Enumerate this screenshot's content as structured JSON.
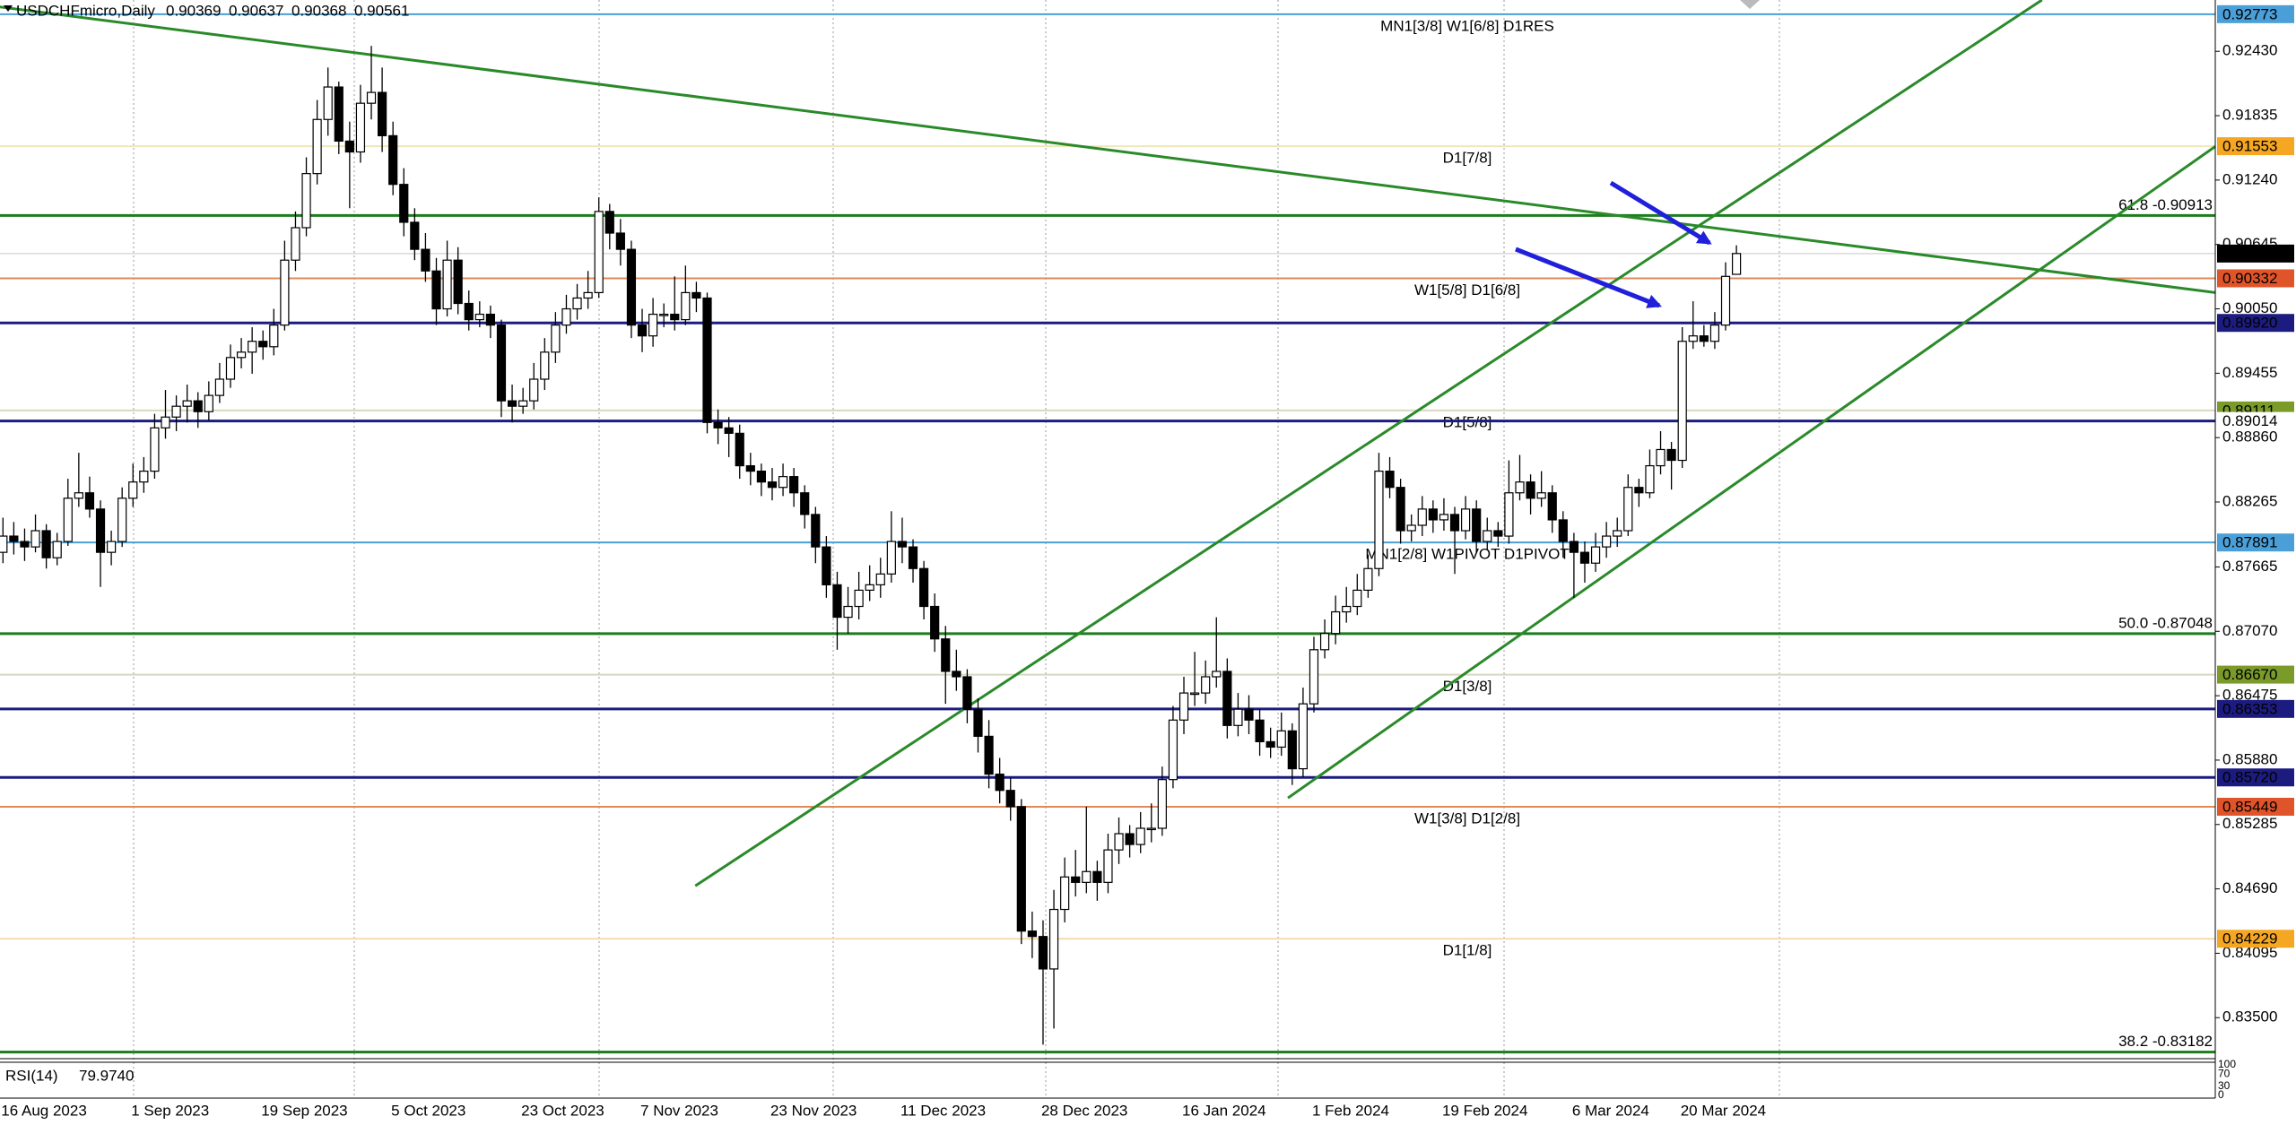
{
  "chart_data": {
    "type": "candlestick",
    "symbol": "USDCHFmicro,Daily",
    "ylim": [
      0.83121,
      0.92904
    ],
    "yticks": [
      {
        "value": 0.9243,
        "label": "0.92430"
      },
      0.91835,
      {
        "value": 0.9124,
        "label": "0.91240"
      },
      0.90645,
      {
        "value": 0.9005,
        "label": "0.90050"
      },
      0.89455,
      {
        "value": 0.8886,
        "label": "0.88860"
      },
      0.88265,
      0.87665,
      {
        "value": 0.8707,
        "label": "0.87070"
      },
      0.86475,
      {
        "value": 0.8588,
        "label": "0.85880"
      },
      0.85285,
      {
        "value": 0.8469,
        "label": "0.84690"
      },
      0.84095,
      {
        "value": 0.835,
        "label": "0.83500"
      }
    ],
    "categories": [
      "16 Aug 2023",
      null,
      null,
      null,
      null,
      null,
      null,
      null,
      null,
      null,
      null,
      null,
      "1 Sep 2023",
      null,
      null,
      null,
      null,
      null,
      null,
      null,
      null,
      null,
      null,
      null,
      "19 Sep 2023",
      null,
      null,
      null,
      null,
      null,
      null,
      null,
      null,
      null,
      null,
      null,
      "5 Oct 2023",
      null,
      null,
      null,
      null,
      null,
      null,
      null,
      null,
      null,
      null,
      null,
      "23 Oct 2023",
      null,
      null,
      null,
      null,
      null,
      null,
      null,
      null,
      null,
      null,
      "7 Nov 2023",
      null,
      null,
      null,
      null,
      null,
      null,
      null,
      null,
      null,
      null,
      null,
      "23 Nov 2023",
      null,
      null,
      null,
      null,
      null,
      null,
      null,
      null,
      null,
      null,
      null,
      "11 Dec 2023",
      null,
      null,
      null,
      null,
      null,
      null,
      null,
      null,
      null,
      null,
      null,
      null,
      "28 Dec 2023",
      null,
      null,
      null,
      null,
      null,
      null,
      null,
      null,
      null,
      null,
      null,
      null,
      "16 Jan 2024",
      null,
      null,
      null,
      null,
      null,
      null,
      null,
      null,
      null,
      null,
      null,
      "1 Feb 2024",
      null,
      null,
      null,
      null,
      null,
      null,
      null,
      null,
      null,
      null,
      null,
      "19 Feb 2024",
      null,
      null,
      null,
      null,
      null,
      null,
      null,
      null,
      null,
      null,
      null,
      "6 Mar 2024",
      null,
      null,
      null,
      null,
      null,
      null,
      null,
      null,
      null,
      "20 Mar 2024",
      null,
      null,
      null,
      null,
      null
    ],
    "ohlc": [
      [
        0.878,
        0.8812,
        0.877,
        0.8795
      ],
      [
        0.8795,
        0.8808,
        0.8778,
        0.879
      ],
      [
        0.879,
        0.8802,
        0.8772,
        0.8785
      ],
      [
        0.8785,
        0.8815,
        0.878,
        0.88
      ],
      [
        0.88,
        0.8806,
        0.8765,
        0.8775
      ],
      [
        0.8775,
        0.8798,
        0.8768,
        0.879
      ],
      [
        0.879,
        0.8848,
        0.8786,
        0.883
      ],
      [
        0.883,
        0.8872,
        0.8822,
        0.8835
      ],
      [
        0.8835,
        0.885,
        0.8812,
        0.882
      ],
      [
        0.882,
        0.8828,
        0.8748,
        0.878
      ],
      [
        0.878,
        0.88,
        0.8768,
        0.879
      ],
      [
        0.879,
        0.884,
        0.8785,
        0.883
      ],
      [
        0.883,
        0.8862,
        0.8822,
        0.8845
      ],
      [
        0.8845,
        0.8868,
        0.8835,
        0.8855
      ],
      [
        0.8855,
        0.8908,
        0.8848,
        0.8895
      ],
      [
        0.8895,
        0.893,
        0.8885,
        0.8905
      ],
      [
        0.8905,
        0.8925,
        0.8892,
        0.8915
      ],
      [
        0.8915,
        0.8935,
        0.89,
        0.892
      ],
      [
        0.892,
        0.8928,
        0.8895,
        0.891
      ],
      [
        0.891,
        0.8938,
        0.8902,
        0.8925
      ],
      [
        0.8925,
        0.8955,
        0.8918,
        0.894
      ],
      [
        0.894,
        0.8972,
        0.8932,
        0.896
      ],
      [
        0.896,
        0.8978,
        0.895,
        0.8965
      ],
      [
        0.8965,
        0.8988,
        0.8945,
        0.8975
      ],
      [
        0.8975,
        0.8985,
        0.8958,
        0.897
      ],
      [
        0.897,
        0.9005,
        0.8962,
        0.899
      ],
      [
        0.899,
        0.9068,
        0.8985,
        0.905
      ],
      [
        0.905,
        0.9095,
        0.904,
        0.908
      ],
      [
        0.908,
        0.9145,
        0.9072,
        0.913
      ],
      [
        0.913,
        0.9198,
        0.912,
        0.918
      ],
      [
        0.918,
        0.9228,
        0.9165,
        0.921
      ],
      [
        0.921,
        0.9215,
        0.9148,
        0.916
      ],
      [
        0.916,
        0.9178,
        0.9098,
        0.915
      ],
      [
        0.915,
        0.9212,
        0.914,
        0.9195
      ],
      [
        0.9195,
        0.9248,
        0.918,
        0.9205
      ],
      [
        0.9205,
        0.9228,
        0.915,
        0.9165
      ],
      [
        0.9165,
        0.9178,
        0.911,
        0.912
      ],
      [
        0.912,
        0.9135,
        0.9072,
        0.9085
      ],
      [
        0.9085,
        0.9098,
        0.905,
        0.906
      ],
      [
        0.906,
        0.9075,
        0.903,
        0.904
      ],
      [
        0.904,
        0.9052,
        0.899,
        0.9005
      ],
      [
        0.9005,
        0.9068,
        0.8998,
        0.905
      ],
      [
        0.905,
        0.9062,
        0.9,
        0.901
      ],
      [
        0.901,
        0.9022,
        0.8985,
        0.8995
      ],
      [
        0.8995,
        0.9012,
        0.8988,
        0.9
      ],
      [
        0.9,
        0.9008,
        0.8978,
        0.899
      ],
      [
        0.899,
        0.8995,
        0.8905,
        0.892
      ],
      [
        0.892,
        0.8935,
        0.89,
        0.8915
      ],
      [
        0.8915,
        0.8932,
        0.8908,
        0.892
      ],
      [
        0.892,
        0.8955,
        0.8912,
        0.894
      ],
      [
        0.894,
        0.8978,
        0.893,
        0.8965
      ],
      [
        0.8965,
        0.9002,
        0.8955,
        0.899
      ],
      [
        0.899,
        0.9018,
        0.8982,
        0.9005
      ],
      [
        0.9005,
        0.9028,
        0.8995,
        0.9015
      ],
      [
        0.9015,
        0.904,
        0.9005,
        0.902
      ],
      [
        0.902,
        0.9108,
        0.9015,
        0.9095
      ],
      [
        0.9095,
        0.9102,
        0.906,
        0.9075
      ],
      [
        0.9075,
        0.9088,
        0.9045,
        0.906
      ],
      [
        0.906,
        0.9068,
        0.8978,
        0.899
      ],
      [
        0.899,
        0.9005,
        0.8965,
        0.898
      ],
      [
        0.898,
        0.9015,
        0.897,
        0.9
      ],
      [
        0.9,
        0.901,
        0.8988,
        0.9
      ],
      [
        0.9,
        0.9035,
        0.8985,
        0.8995
      ],
      [
        0.8995,
        0.9045,
        0.899,
        0.902
      ],
      [
        0.902,
        0.903,
        0.9002,
        0.9015
      ],
      [
        0.9015,
        0.902,
        0.889,
        0.89
      ],
      [
        0.89,
        0.8912,
        0.888,
        0.8895
      ],
      [
        0.8895,
        0.8905,
        0.8868,
        0.889
      ],
      [
        0.889,
        0.8898,
        0.8848,
        0.886
      ],
      [
        0.886,
        0.8872,
        0.8842,
        0.8855
      ],
      [
        0.8855,
        0.8862,
        0.8832,
        0.8845
      ],
      [
        0.8845,
        0.8858,
        0.8828,
        0.884
      ],
      [
        0.884,
        0.8862,
        0.8832,
        0.885
      ],
      [
        0.885,
        0.8858,
        0.8822,
        0.8835
      ],
      [
        0.8835,
        0.8842,
        0.8802,
        0.8815
      ],
      [
        0.8815,
        0.8822,
        0.877,
        0.8785
      ],
      [
        0.8785,
        0.8795,
        0.8738,
        0.875
      ],
      [
        0.875,
        0.8762,
        0.869,
        0.872
      ],
      [
        0.872,
        0.8748,
        0.8705,
        0.873
      ],
      [
        0.873,
        0.8762,
        0.8718,
        0.8745
      ],
      [
        0.8745,
        0.8768,
        0.8735,
        0.875
      ],
      [
        0.875,
        0.8775,
        0.8738,
        0.876
      ],
      [
        0.876,
        0.8818,
        0.8752,
        0.879
      ],
      [
        0.879,
        0.8812,
        0.877,
        0.8785
      ],
      [
        0.8785,
        0.8792,
        0.8752,
        0.8765
      ],
      [
        0.8765,
        0.8772,
        0.8718,
        0.873
      ],
      [
        0.873,
        0.8742,
        0.8688,
        0.87
      ],
      [
        0.87,
        0.8712,
        0.864,
        0.867
      ],
      [
        0.867,
        0.869,
        0.8652,
        0.8665
      ],
      [
        0.8665,
        0.8672,
        0.8622,
        0.8635
      ],
      [
        0.8635,
        0.8645,
        0.8595,
        0.861
      ],
      [
        0.861,
        0.8625,
        0.8562,
        0.8575
      ],
      [
        0.8575,
        0.859,
        0.8548,
        0.856
      ],
      [
        0.856,
        0.8572,
        0.8532,
        0.8545
      ],
      [
        0.8545,
        0.8552,
        0.8418,
        0.843
      ],
      [
        0.843,
        0.8448,
        0.8405,
        0.8425
      ],
      [
        0.8425,
        0.844,
        0.8325,
        0.8395
      ],
      [
        0.8395,
        0.8468,
        0.834,
        0.845
      ],
      [
        0.845,
        0.8498,
        0.8438,
        0.848
      ],
      [
        0.848,
        0.8505,
        0.8462,
        0.8475
      ],
      [
        0.8475,
        0.8545,
        0.8465,
        0.8485
      ],
      [
        0.8485,
        0.8495,
        0.8458,
        0.8475
      ],
      [
        0.8475,
        0.852,
        0.8465,
        0.8505
      ],
      [
        0.8505,
        0.8535,
        0.8492,
        0.852
      ],
      [
        0.852,
        0.8528,
        0.8498,
        0.851
      ],
      [
        0.851,
        0.854,
        0.8502,
        0.8525
      ],
      [
        0.8525,
        0.8548,
        0.8512,
        0.8525
      ],
      [
        0.8525,
        0.8582,
        0.8518,
        0.857
      ],
      [
        0.857,
        0.8638,
        0.8562,
        0.8625
      ],
      [
        0.8625,
        0.8665,
        0.8612,
        0.865
      ],
      [
        0.865,
        0.8688,
        0.8638,
        0.865
      ],
      [
        0.865,
        0.868,
        0.864,
        0.8665
      ],
      [
        0.8665,
        0.872,
        0.8655,
        0.867
      ],
      [
        0.867,
        0.8682,
        0.8608,
        0.862
      ],
      [
        0.862,
        0.865,
        0.861,
        0.8635
      ],
      [
        0.8635,
        0.8648,
        0.8612,
        0.8625
      ],
      [
        0.8625,
        0.8635,
        0.8592,
        0.8605
      ],
      [
        0.8605,
        0.8618,
        0.859,
        0.86
      ],
      [
        0.86,
        0.8632,
        0.8592,
        0.8615
      ],
      [
        0.8615,
        0.8622,
        0.8565,
        0.858
      ],
      [
        0.858,
        0.8655,
        0.8572,
        0.864
      ],
      [
        0.864,
        0.8702,
        0.8632,
        0.869
      ],
      [
        0.869,
        0.8718,
        0.8682,
        0.8705
      ],
      [
        0.8705,
        0.874,
        0.8695,
        0.8725
      ],
      [
        0.8725,
        0.8748,
        0.8715,
        0.873
      ],
      [
        0.873,
        0.876,
        0.8722,
        0.8745
      ],
      [
        0.8745,
        0.8778,
        0.8738,
        0.8765
      ],
      [
        0.8765,
        0.8872,
        0.8758,
        0.8855
      ],
      [
        0.8855,
        0.8868,
        0.883,
        0.884
      ],
      [
        0.884,
        0.8848,
        0.8788,
        0.88
      ],
      [
        0.88,
        0.8815,
        0.879,
        0.8805
      ],
      [
        0.8805,
        0.8832,
        0.8795,
        0.882
      ],
      [
        0.882,
        0.8828,
        0.8798,
        0.881
      ],
      [
        0.881,
        0.883,
        0.88,
        0.8815
      ],
      [
        0.8815,
        0.8822,
        0.876,
        0.88
      ],
      [
        0.88,
        0.8832,
        0.8792,
        0.882
      ],
      [
        0.882,
        0.8828,
        0.878,
        0.879
      ],
      [
        0.879,
        0.8812,
        0.8782,
        0.88
      ],
      [
        0.88,
        0.8808,
        0.8785,
        0.8795
      ],
      [
        0.8795,
        0.8865,
        0.8788,
        0.8835
      ],
      [
        0.8835,
        0.887,
        0.8828,
        0.8845
      ],
      [
        0.8845,
        0.8852,
        0.8815,
        0.883
      ],
      [
        0.883,
        0.8855,
        0.8822,
        0.8835
      ],
      [
        0.8835,
        0.8842,
        0.8798,
        0.881
      ],
      [
        0.881,
        0.8818,
        0.8775,
        0.879
      ],
      [
        0.879,
        0.8798,
        0.8738,
        0.878
      ],
      [
        0.878,
        0.879,
        0.8752,
        0.877
      ],
      [
        0.877,
        0.8798,
        0.8762,
        0.8785
      ],
      [
        0.8785,
        0.8808,
        0.8775,
        0.8795
      ],
      [
        0.8795,
        0.8812,
        0.8785,
        0.88
      ],
      [
        0.88,
        0.8852,
        0.8795,
        0.884
      ],
      [
        0.884,
        0.8848,
        0.8822,
        0.8835
      ],
      [
        0.8835,
        0.8875,
        0.883,
        0.886
      ],
      [
        0.886,
        0.8892,
        0.8852,
        0.8875
      ],
      [
        0.8875,
        0.8882,
        0.8838,
        0.8865
      ],
      [
        0.8865,
        0.8988,
        0.8858,
        0.8975
      ],
      [
        0.8975,
        0.9012,
        0.8968,
        0.898
      ],
      [
        0.898,
        0.899,
        0.897,
        0.8975
      ],
      [
        0.8975,
        0.9002,
        0.8968,
        0.899
      ],
      [
        0.899,
        0.9048,
        0.8985,
        0.9035
      ],
      [
        0.90369,
        0.90637,
        0.90368,
        0.90561
      ]
    ],
    "up_color": "#ffffff",
    "down_color": "#000000",
    "current_price_color": "#000000",
    "levels": [
      {
        "price": 0.92773,
        "color": "#4a9fd8",
        "heavy": false,
        "text": "MN1[3/8] W1[6/8] D1RES",
        "text_color": "#4a9fd8",
        "tag_color": "#4a9fd8"
      },
      {
        "price": 0.91553,
        "color": "#efe7b6",
        "heavy": false,
        "text": "D1[7/8]",
        "text_color": "#e8a317",
        "tag_color": "#f5a623"
      },
      {
        "price": 0.90332,
        "color": "#e08a5a",
        "heavy": false,
        "text": "W1[5/8] D1[6/8]",
        "text_color": "#e0542a",
        "tag_color": "#e0542a"
      },
      {
        "price": 0.8992,
        "label": "0.89920",
        "color": "#1c1c80",
        "heavy": true,
        "tag_color": "#1c1c80"
      },
      {
        "price": 0.89111,
        "color": "#d8d8c0",
        "heavy": false,
        "text": "D1[5/8]",
        "text_color": "#7a9a2a",
        "tag_color": "#7a9a2a"
      },
      {
        "price": 0.89014,
        "color": "#1c1c80",
        "heavy": true
      },
      {
        "price": 0.87891,
        "color": "#4a9fd8",
        "heavy": false,
        "text": "MN1[2/8] W1PIVOT D1PIVOT",
        "text_color": "#4a9fd8",
        "tag_color": "#4a9fd8"
      },
      {
        "price": 0.8667,
        "label": "0.86670",
        "color": "#d8d8c0",
        "heavy": false,
        "text": "D1[3/8]",
        "text_color": "#7a9a2a",
        "tag_color": "#7a9a2a"
      },
      {
        "price": 0.86353,
        "color": "#1c1c80",
        "heavy": true,
        "tag_color": "#1c1c80"
      },
      {
        "price": 0.8572,
        "label": "0.85720",
        "color": "#1c1c80",
        "heavy": true,
        "tag_color": "#1c1c80"
      },
      {
        "price": 0.85449,
        "color": "#e08a5a",
        "heavy": false,
        "text": "W1[3/8] D1[2/8]",
        "text_color": "#e0542a",
        "tag_color": "#e0542a"
      },
      {
        "price": 0.84229,
        "color": "#f5dcae",
        "heavy": false,
        "text": "D1[1/8]",
        "text_color": "#e8a317",
        "tag_color": "#f5a623"
      }
    ],
    "fib_color": "#1e7b1e",
    "fib_levels": [
      {
        "price": 0.90913,
        "text": "61.8 -0.90913"
      },
      {
        "price": 0.87048,
        "text": "50.0 -0.87048"
      },
      {
        "price": 0.83182,
        "text": "38.2 -0.83182"
      }
    ],
    "trendline_color": "#2a8a2a",
    "trendlines": [
      {
        "x": [
          -0.3,
          204.2
        ],
        "y": [
          0.9284,
          0.902
        ]
      },
      {
        "x": [
          63.9,
          188.2
        ],
        "y": [
          0.84718,
          0.92904
        ]
      },
      {
        "x": [
          118.6,
          204.2
        ],
        "y": [
          0.8553,
          0.91551
        ]
      }
    ],
    "rsi": {
      "label": "RSI(14)",
      "value": 79.974,
      "value_label": "79.9740",
      "ylim": [
        0,
        100
      ],
      "yticks": [
        100,
        70,
        30,
        0
      ]
    }
  }
}
